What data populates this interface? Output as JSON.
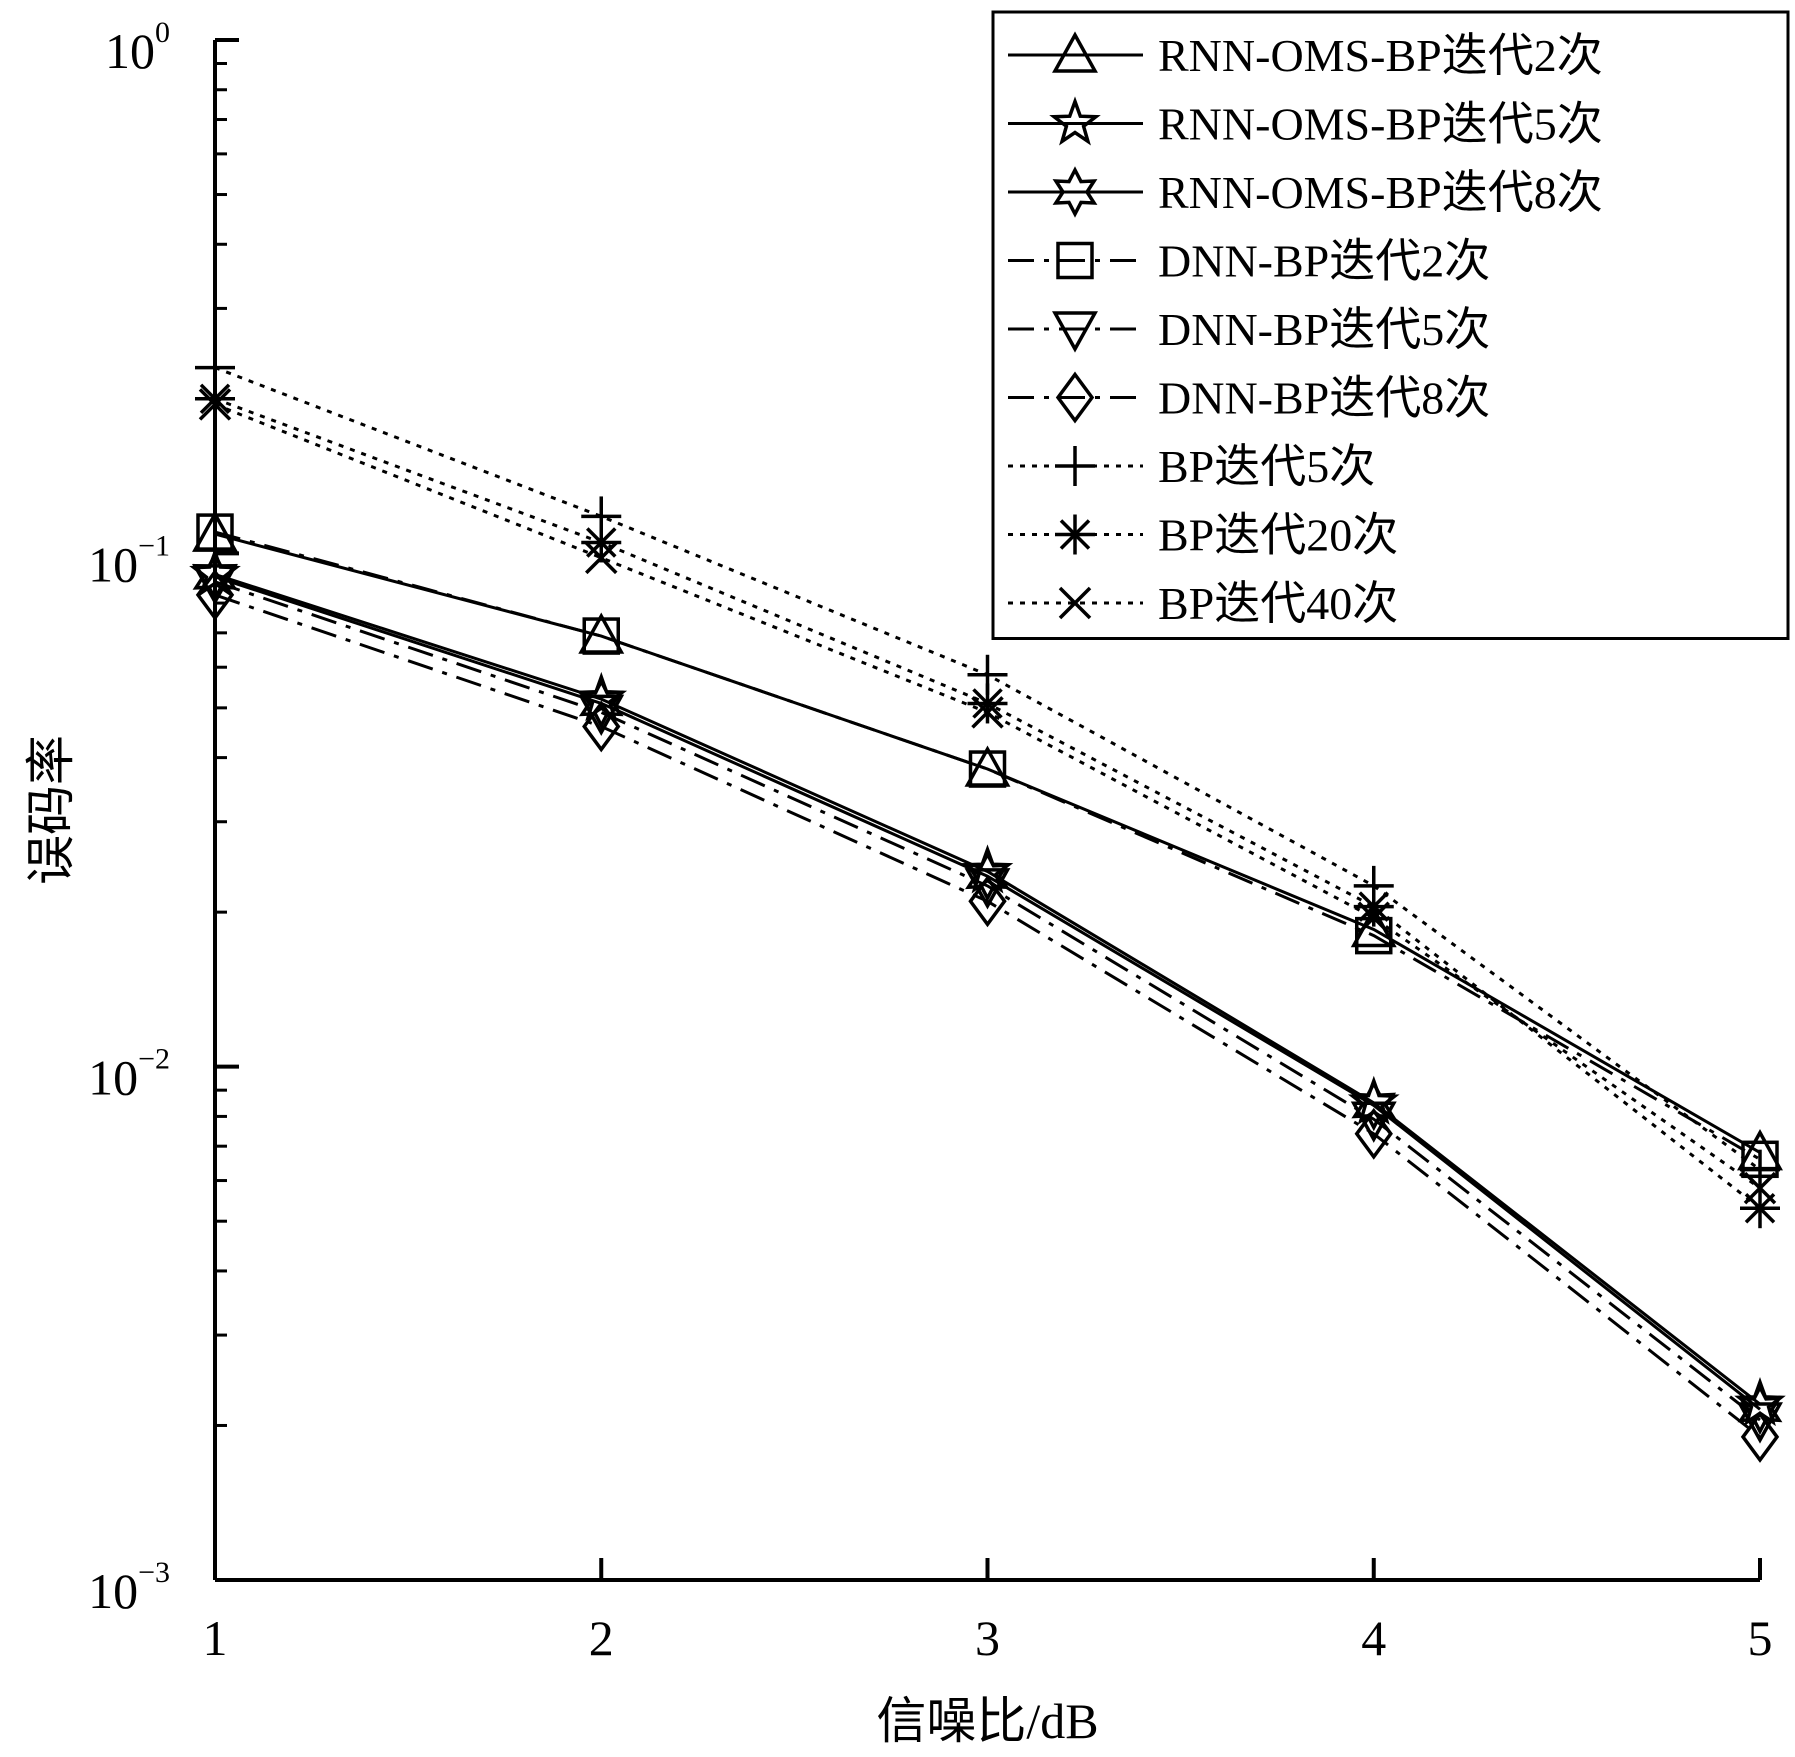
{
  "chart_data": {
    "type": "line",
    "title": "",
    "xlabel": "信噪比/dB",
    "ylabel": "误码率",
    "yscale": "log",
    "xlim": [
      1,
      5
    ],
    "ylim": [
      0.001,
      1
    ],
    "grid": false,
    "legend_position": "top-right",
    "x": [
      1,
      2,
      3,
      4,
      5
    ],
    "x_ticks": [
      "1",
      "2",
      "3",
      "4",
      "5"
    ],
    "y_ticks": [
      {
        "value": 1,
        "base": "10",
        "exp": "0"
      },
      {
        "value": 0.1,
        "base": "10",
        "exp": "−1"
      },
      {
        "value": 0.01,
        "base": "10",
        "exp": "−2"
      },
      {
        "value": 0.001,
        "base": "10",
        "exp": "−3"
      }
    ],
    "series": [
      {
        "name": "RNN-OMS-BP迭代2次",
        "marker": "triangle-up",
        "line": "solid",
        "values": [
          0.109,
          0.069,
          0.038,
          0.0185,
          0.0068
        ]
      },
      {
        "name": "RNN-OMS-BP迭代5次",
        "marker": "star5",
        "line": "solid",
        "values": [
          0.091,
          0.052,
          0.024,
          0.0085,
          0.0022
        ]
      },
      {
        "name": "RNN-OMS-BP迭代8次",
        "marker": "star6",
        "line": "solid",
        "values": [
          0.09,
          0.051,
          0.0235,
          0.0084,
          0.00215
        ]
      },
      {
        "name": "DNN-BP迭代2次",
        "marker": "square",
        "line": "dashdot",
        "values": [
          0.11,
          0.069,
          0.038,
          0.018,
          0.0066
        ]
      },
      {
        "name": "DNN-BP迭代5次",
        "marker": "triangle-down",
        "line": "dashdot",
        "values": [
          0.088,
          0.049,
          0.0225,
          0.0079,
          0.00205
        ]
      },
      {
        "name": "DNN-BP迭代8次",
        "marker": "diamond",
        "line": "dashdot",
        "values": [
          0.083,
          0.046,
          0.021,
          0.0074,
          0.0019
        ]
      },
      {
        "name": "BP迭代5次",
        "marker": "plus",
        "line": "dotted",
        "values": [
          0.23,
          0.118,
          0.058,
          0.0225,
          0.0063
        ]
      },
      {
        "name": "BP迭代20次",
        "marker": "asterisk",
        "line": "dotted",
        "values": [
          0.2,
          0.105,
          0.051,
          0.0205,
          0.0053
        ]
      },
      {
        "name": "BP迭代40次",
        "marker": "x",
        "line": "dotted",
        "values": [
          0.195,
          0.098,
          0.049,
          0.0195,
          0.0058
        ]
      }
    ]
  }
}
